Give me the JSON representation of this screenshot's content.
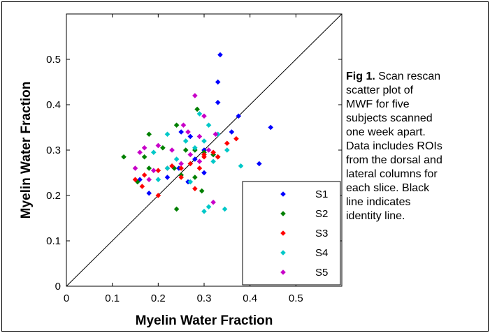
{
  "caption": {
    "label": "Fig 1.",
    "lines": [
      "Scan rescan",
      "scatter plot of",
      "MWF for five",
      "subjects scanned",
      "one week apart.",
      "Data includes ROIs",
      "from the dorsal and",
      "lateral columns for",
      "each slice.  Black",
      "line indicates",
      "identity line."
    ]
  },
  "chart_data": {
    "type": "scatter",
    "title": "",
    "xlabel": "Myelin Water Fraction",
    "ylabel": "Myelin Water Fraction",
    "xlim": [
      0,
      0.6
    ],
    "ylim": [
      0,
      0.6
    ],
    "xticks": [
      0,
      0.1,
      0.2,
      0.3,
      0.4,
      0.5
    ],
    "yticks": [
      0,
      0.1,
      0.2,
      0.3,
      0.4,
      0.5
    ],
    "xtick_labels": [
      "0",
      "0.1",
      "0.2",
      "0.3",
      "0.4",
      "0.5"
    ],
    "ytick_labels": [
      "0",
      "0.1",
      "0.2",
      "0.3",
      "0.4",
      "0.5"
    ],
    "grid": false,
    "legend_position": "bottom-right",
    "marker": "diamond",
    "identity_line": true,
    "series": [
      {
        "name": "S1",
        "color": "#0000ff",
        "points": [
          [
            0.335,
            0.51
          ],
          [
            0.33,
            0.45
          ],
          [
            0.33,
            0.405
          ],
          [
            0.375,
            0.375
          ],
          [
            0.36,
            0.34
          ],
          [
            0.445,
            0.35
          ],
          [
            0.27,
            0.33
          ],
          [
            0.25,
            0.34
          ],
          [
            0.3,
            0.3
          ],
          [
            0.32,
            0.29
          ],
          [
            0.28,
            0.28
          ],
          [
            0.42,
            0.27
          ],
          [
            0.245,
            0.26
          ],
          [
            0.22,
            0.24
          ],
          [
            0.265,
            0.23
          ],
          [
            0.18,
            0.205
          ],
          [
            0.16,
            0.235
          ],
          [
            0.3,
            0.25
          ]
        ]
      },
      {
        "name": "S2",
        "color": "#008000",
        "points": [
          [
            0.285,
            0.39
          ],
          [
            0.125,
            0.285
          ],
          [
            0.18,
            0.335
          ],
          [
            0.24,
            0.355
          ],
          [
            0.28,
            0.3
          ],
          [
            0.3,
            0.295
          ],
          [
            0.32,
            0.29
          ],
          [
            0.235,
            0.26
          ],
          [
            0.25,
            0.245
          ],
          [
            0.17,
            0.285
          ],
          [
            0.18,
            0.26
          ],
          [
            0.24,
            0.17
          ],
          [
            0.28,
            0.24
          ],
          [
            0.295,
            0.21
          ],
          [
            0.155,
            0.23
          ],
          [
            0.21,
            0.305
          ],
          [
            0.26,
            0.3
          ],
          [
            0.33,
            0.285
          ]
        ]
      },
      {
        "name": "S3",
        "color": "#ff0000",
        "points": [
          [
            0.37,
            0.325
          ],
          [
            0.35,
            0.315
          ],
          [
            0.32,
            0.295
          ],
          [
            0.3,
            0.29
          ],
          [
            0.27,
            0.27
          ],
          [
            0.25,
            0.26
          ],
          [
            0.23,
            0.265
          ],
          [
            0.2,
            0.255
          ],
          [
            0.17,
            0.245
          ],
          [
            0.165,
            0.22
          ],
          [
            0.2,
            0.2
          ],
          [
            0.25,
            0.24
          ],
          [
            0.29,
            0.26
          ],
          [
            0.3,
            0.285
          ],
          [
            0.33,
            0.285
          ],
          [
            0.28,
            0.215
          ],
          [
            0.15,
            0.235
          ],
          [
            0.22,
            0.26
          ]
        ]
      },
      {
        "name": "S4",
        "color": "#00c8c8",
        "points": [
          [
            0.29,
            0.38
          ],
          [
            0.31,
            0.355
          ],
          [
            0.33,
            0.335
          ],
          [
            0.22,
            0.335
          ],
          [
            0.3,
            0.32
          ],
          [
            0.26,
            0.32
          ],
          [
            0.28,
            0.305
          ],
          [
            0.35,
            0.3
          ],
          [
            0.19,
            0.295
          ],
          [
            0.24,
            0.28
          ],
          [
            0.32,
            0.275
          ],
          [
            0.38,
            0.265
          ],
          [
            0.22,
            0.26
          ],
          [
            0.2,
            0.235
          ],
          [
            0.27,
            0.23
          ],
          [
            0.3,
            0.165
          ],
          [
            0.31,
            0.175
          ],
          [
            0.345,
            0.17
          ]
        ]
      },
      {
        "name": "S5",
        "color": "#c800c8",
        "points": [
          [
            0.28,
            0.42
          ],
          [
            0.3,
            0.375
          ],
          [
            0.255,
            0.355
          ],
          [
            0.265,
            0.34
          ],
          [
            0.29,
            0.33
          ],
          [
            0.325,
            0.335
          ],
          [
            0.2,
            0.31
          ],
          [
            0.23,
            0.3
          ],
          [
            0.17,
            0.305
          ],
          [
            0.16,
            0.295
          ],
          [
            0.27,
            0.29
          ],
          [
            0.31,
            0.3
          ],
          [
            0.25,
            0.27
          ],
          [
            0.19,
            0.255
          ],
          [
            0.15,
            0.26
          ],
          [
            0.32,
            0.185
          ],
          [
            0.29,
            0.275
          ],
          [
            0.18,
            0.235
          ]
        ]
      }
    ]
  }
}
